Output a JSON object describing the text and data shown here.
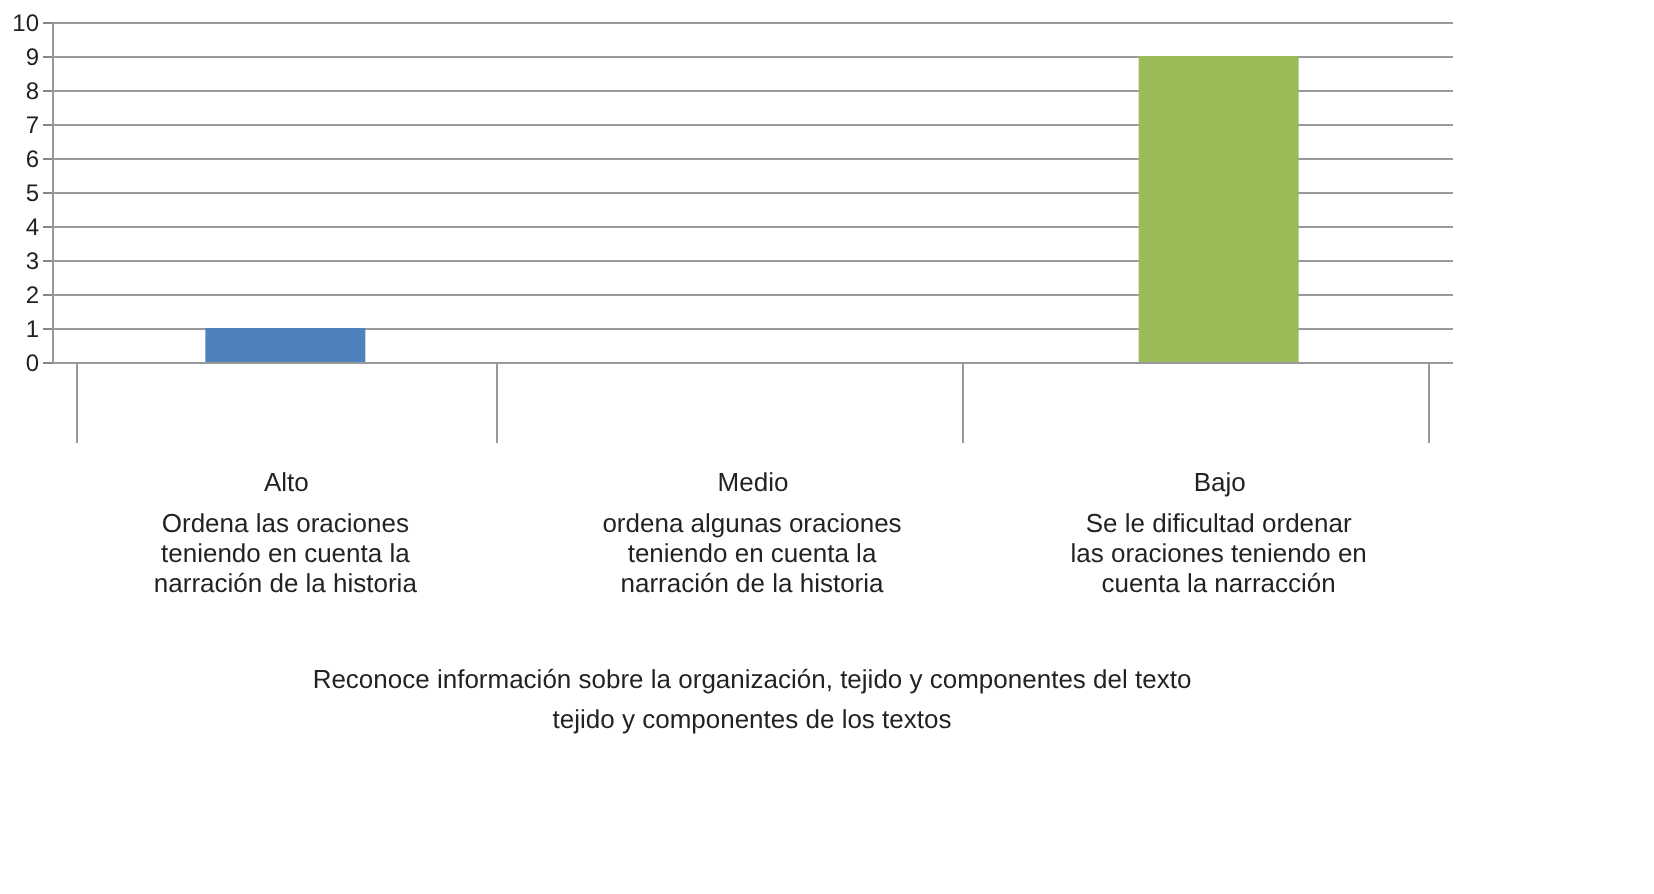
{
  "chart_data": {
    "type": "bar",
    "categories": [
      "Alto",
      "Medio",
      "Bajo"
    ],
    "values": [
      1,
      0,
      9
    ],
    "colors": [
      "#4f81bd",
      "#c0504d",
      "#9bbb59"
    ],
    "ylim": [
      0,
      10
    ],
    "yticks": [
      0,
      1,
      2,
      3,
      4,
      5,
      6,
      7,
      8,
      9,
      10
    ],
    "grid": "y",
    "annotations": [
      "Ordena las oraciones teniendo en cuenta la narración de la historia",
      "ordena algunas oraciones teniendo en cuenta la narración de la historia",
      "Se le dificultad ordenar las oraciones teniendo en cuenta la narracción",
      "Reconoce información sobre la organización, tejido y componentes del texto",
      "tejido y componentes de los textos"
    ]
  }
}
